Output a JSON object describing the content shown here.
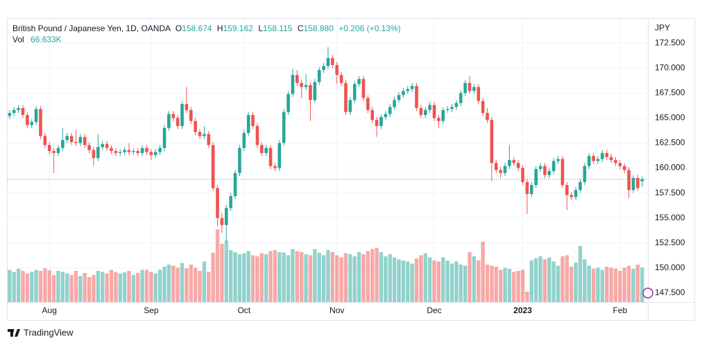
{
  "chart_data": {
    "type": "candlestick",
    "title": "British Pound / Japanese Yen, 1D, OANDA",
    "legend_keys": {
      "open": "O",
      "high": "H",
      "low": "L",
      "close": "C"
    },
    "legend_values": {
      "open": "158.674",
      "high": "159.162",
      "low": "158.115",
      "close": "158.880",
      "change": "+0.206 (+0.13%)"
    },
    "volume_label": "Vol",
    "volume_value_label": "66.633K",
    "y_axis_label": "JPY",
    "colors": {
      "up": "#26a69a",
      "down": "#ef5350"
    },
    "grid": true,
    "ylim": [
      146.6,
      174.93
    ],
    "yticks": [
      {
        "value": 147.5,
        "label": "147.500"
      },
      {
        "value": 150,
        "label": "150.000"
      },
      {
        "value": 152.5,
        "label": "152.500"
      },
      {
        "value": 155,
        "label": "155.000"
      },
      {
        "value": 157.5,
        "label": "157.500"
      },
      {
        "value": 160,
        "label": "160.000"
      },
      {
        "value": 162.5,
        "label": "162.500"
      },
      {
        "value": 165,
        "label": "165.000"
      },
      {
        "value": 167.5,
        "label": "167.500"
      },
      {
        "value": 170,
        "label": "170.000"
      },
      {
        "value": 172.5,
        "label": "172.500"
      }
    ],
    "xlim": [
      -0.6,
      144.3
    ],
    "xticks": [
      {
        "value": 9,
        "label": "Aug"
      },
      {
        "value": 32,
        "label": "Sep"
      },
      {
        "value": 53,
        "label": "Oct"
      },
      {
        "value": 74,
        "label": "Nov"
      },
      {
        "value": 96,
        "label": "Dec"
      },
      {
        "value": 116,
        "label": "2023"
      },
      {
        "value": 138,
        "label": "Feb"
      }
    ],
    "volume_ylim": [
      0,
      545
    ],
    "open": [
      165.2,
      165.5,
      165.8,
      166.0,
      165.3,
      164.3,
      164.6,
      165.9,
      163.2,
      162.3,
      161.7,
      161.5,
      162.0,
      162.8,
      163.2,
      162.6,
      162.5,
      163.1,
      162.3,
      161.8,
      161.0,
      162.1,
      162.4,
      162.0,
      161.7,
      161.5,
      161.6,
      161.8,
      161.6,
      161.7,
      161.5,
      162.0,
      161.6,
      161.3,
      161.6,
      162.0,
      164.0,
      165.4,
      165.0,
      164.2,
      166.4,
      165.8,
      164.7,
      163.6,
      163.2,
      163.4,
      162.3,
      158.0,
      155.0,
      154.3,
      156.0,
      157.2,
      159.5,
      162.0,
      163.5,
      165.3,
      164.2,
      162.3,
      161.5,
      162.0,
      160.2,
      160.0,
      162.5,
      165.6,
      167.4,
      169.3,
      168.5,
      168.1,
      168.3,
      166.8,
      168.6,
      169.8,
      170.2,
      171.0,
      170.3,
      169.3,
      168.5,
      165.6,
      166.8,
      168.4,
      168.9,
      167.0,
      165.8,
      164.8,
      164.2,
      165.1,
      165.4,
      166.1,
      166.8,
      167.3,
      167.7,
      167.9,
      168.2,
      166.0,
      165.3,
      165.8,
      166.3,
      165.0,
      164.7,
      165.8,
      165.9,
      166.1,
      166.5,
      167.5,
      168.5,
      167.7,
      168.1,
      166.7,
      165.5,
      164.8,
      160.5,
      159.8,
      159.5,
      160.2,
      160.8,
      160.5,
      160.0,
      158.6,
      157.4,
      158.3,
      159.9,
      160.2,
      159.3,
      159.7,
      160.7,
      160.9,
      158.3,
      157.3,
      157.1,
      157.8,
      158.6,
      160.2,
      161.2,
      160.7,
      160.9,
      161.5,
      161.1,
      160.8,
      160.5,
      160.2,
      159.8,
      157.8,
      159.0,
      158.674
    ],
    "high": [
      165.8,
      166.1,
      166.3,
      166.3,
      165.6,
      164.9,
      166.2,
      166.2,
      163.5,
      162.6,
      162.0,
      162.3,
      164.0,
      163.5,
      163.5,
      163.8,
      163.4,
      163.4,
      162.6,
      162.1,
      163.4,
      162.7,
      162.7,
      162.3,
      162.0,
      161.9,
      162.1,
      162.5,
      162.0,
      162.0,
      162.3,
      162.3,
      161.9,
      161.9,
      162.3,
      164.3,
      165.7,
      165.7,
      165.3,
      166.7,
      168.1,
      166.1,
      165.0,
      163.9,
      164.2,
      163.7,
      162.6,
      158.3,
      155.5,
      156.3,
      157.5,
      159.8,
      162.3,
      163.8,
      165.6,
      165.6,
      164.5,
      162.6,
      162.3,
      162.3,
      160.5,
      162.8,
      165.9,
      167.7,
      169.9,
      169.8,
      168.8,
      169.4,
      168.6,
      168.9,
      170.1,
      170.5,
      172.1,
      171.3,
      170.6,
      169.6,
      168.8,
      167.1,
      168.7,
      169.2,
      169.2,
      167.3,
      166.1,
      165.1,
      165.4,
      165.7,
      166.4,
      167.1,
      167.6,
      168.0,
      168.2,
      168.5,
      168.5,
      166.3,
      166.1,
      166.6,
      166.6,
      165.3,
      166.1,
      166.2,
      166.4,
      166.8,
      167.8,
      168.8,
      169.2,
      168.4,
      168.4,
      167.0,
      166.0,
      165.1,
      160.8,
      160.1,
      160.5,
      162.3,
      161.1,
      160.8,
      160.3,
      158.9,
      158.6,
      160.2,
      160.5,
      160.5,
      160.0,
      161.0,
      161.2,
      161.2,
      158.6,
      157.6,
      158.1,
      158.9,
      160.5,
      161.5,
      161.5,
      161.2,
      161.8,
      161.8,
      161.4,
      161.1,
      160.8,
      160.5,
      160.1,
      159.3,
      159.3,
      159.162
    ],
    "low": [
      164.9,
      165.2,
      165.5,
      165.0,
      164.0,
      164.0,
      164.3,
      162.9,
      162.0,
      161.4,
      159.5,
      161.2,
      161.7,
      162.5,
      162.3,
      162.2,
      162.2,
      162.0,
      161.5,
      160.2,
      160.7,
      161.8,
      161.7,
      161.4,
      161.2,
      161.2,
      161.3,
      161.3,
      161.3,
      161.2,
      161.2,
      161.3,
      160.8,
      161.0,
      161.3,
      161.7,
      163.7,
      164.7,
      163.9,
      163.9,
      165.5,
      164.4,
      163.3,
      162.9,
      162.9,
      162.0,
      157.7,
      154.2,
      153.5,
      152.6,
      155.7,
      156.9,
      159.2,
      161.7,
      163.2,
      163.9,
      162.0,
      161.2,
      161.2,
      159.9,
      159.7,
      159.7,
      162.2,
      165.3,
      167.1,
      168.2,
      167.0,
      167.8,
      164.7,
      166.5,
      168.3,
      169.5,
      169.9,
      170.0,
      168.4,
      168.2,
      165.3,
      165.3,
      166.5,
      168.1,
      166.7,
      165.5,
      164.5,
      163.1,
      163.9,
      164.8,
      165.1,
      165.8,
      166.5,
      167.0,
      167.4,
      167.6,
      165.7,
      165.0,
      165.0,
      165.5,
      164.7,
      164.0,
      164.4,
      165.5,
      165.6,
      165.8,
      166.2,
      167.2,
      167.4,
      167.4,
      166.4,
      165.2,
      164.5,
      158.7,
      159.5,
      159.0,
      159.2,
      159.9,
      160.2,
      159.7,
      158.3,
      155.4,
      157.1,
      158.0,
      159.6,
      159.0,
      159.0,
      159.4,
      160.4,
      158.0,
      155.8,
      156.8,
      156.8,
      157.5,
      158.3,
      159.9,
      160.4,
      160.4,
      160.6,
      160.8,
      160.5,
      160.2,
      159.9,
      159.5,
      157.0,
      157.5,
      157.7,
      158.115
    ],
    "close": [
      165.5,
      165.8,
      166.0,
      165.3,
      164.3,
      164.6,
      165.9,
      163.2,
      162.3,
      161.7,
      161.5,
      162.0,
      162.8,
      163.2,
      162.6,
      162.5,
      163.1,
      162.3,
      161.8,
      161.0,
      162.1,
      162.4,
      162.0,
      161.7,
      161.5,
      161.6,
      161.8,
      161.6,
      161.7,
      161.5,
      162.0,
      161.6,
      161.3,
      161.6,
      162.0,
      164.0,
      165.4,
      165.0,
      164.2,
      166.4,
      165.8,
      164.7,
      163.6,
      163.2,
      163.4,
      162.3,
      158.0,
      155.0,
      154.3,
      156.0,
      157.2,
      159.5,
      162.0,
      163.5,
      165.3,
      164.2,
      162.3,
      161.5,
      162.0,
      160.2,
      160.0,
      162.5,
      165.6,
      167.4,
      169.3,
      168.5,
      168.1,
      168.3,
      166.8,
      168.6,
      169.8,
      170.2,
      171.0,
      170.3,
      169.3,
      168.5,
      165.6,
      166.8,
      168.4,
      168.9,
      167.0,
      165.8,
      164.8,
      164.2,
      165.1,
      165.4,
      166.1,
      166.8,
      167.3,
      167.7,
      167.9,
      168.2,
      166.0,
      165.3,
      165.8,
      166.3,
      165.0,
      164.7,
      165.8,
      165.9,
      166.1,
      166.5,
      167.5,
      168.5,
      167.7,
      168.1,
      166.7,
      165.5,
      164.8,
      160.5,
      159.8,
      159.5,
      160.2,
      160.8,
      160.5,
      160.0,
      158.6,
      157.4,
      158.3,
      159.9,
      160.2,
      159.3,
      159.7,
      160.7,
      160.9,
      158.3,
      157.3,
      157.1,
      157.8,
      158.6,
      160.2,
      161.2,
      160.7,
      160.9,
      161.5,
      161.1,
      160.8,
      160.5,
      160.2,
      159.8,
      157.8,
      159.0,
      158.0,
      158.88
    ],
    "volume": [
      62,
      58,
      64,
      60,
      55,
      58,
      62,
      60,
      65,
      61,
      52,
      60,
      58,
      55,
      52,
      60,
      50,
      56,
      48,
      52,
      60,
      58,
      55,
      62,
      58,
      55,
      57,
      60,
      52,
      56,
      62,
      62,
      58,
      55,
      62,
      68,
      72,
      70,
      66,
      75,
      65,
      72,
      66,
      60,
      78,
      58,
      95,
      140,
      112,
      118,
      100,
      96,
      92,
      94,
      98,
      90,
      88,
      94,
      92,
      98,
      100,
      96,
      95,
      90,
      102,
      98,
      96,
      92,
      90,
      102,
      95,
      90,
      100,
      96,
      90,
      86,
      94,
      92,
      88,
      96,
      92,
      98,
      102,
      104,
      96,
      88,
      92,
      86,
      82,
      80,
      78,
      74,
      84,
      90,
      94,
      86,
      80,
      78,
      86,
      80,
      74,
      78,
      72,
      70,
      96,
      88,
      80,
      116,
      72,
      70,
      68,
      62,
      66,
      64,
      58,
      60,
      62,
      20,
      80,
      84,
      88,
      82,
      86,
      78,
      70,
      88,
      90,
      68,
      76,
      108,
      82,
      70,
      64,
      66,
      62,
      68,
      66,
      64,
      60,
      66,
      70,
      64,
      72,
      66.633
    ]
  },
  "branding": "TradingView"
}
